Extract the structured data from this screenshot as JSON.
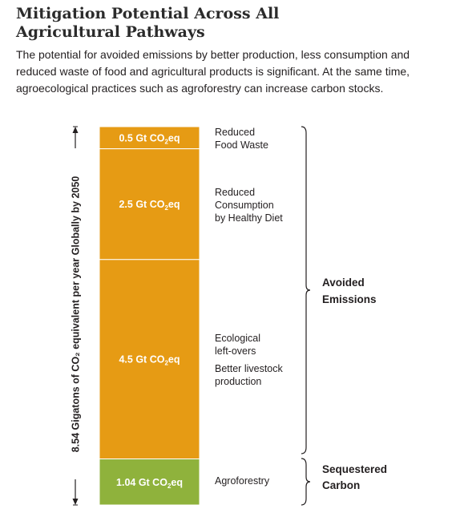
{
  "header": {
    "title_line1": "Mitigation Potential Across All",
    "title_line2": "Agricultural Pathways",
    "subtitle": "The potential for avoided emissions by better production, less consumption and reduced waste of food and agricultural products is significant. At the same time, agroecological practices such as agroforestry can increase carbon stocks."
  },
  "chart_data": {
    "type": "bar",
    "stacked": true,
    "orientation": "vertical",
    "ylabel": "8.54 Gigatons of CO₂ equivalent per year Globally by 2050",
    "total": 8.54,
    "unit": "Gt CO2eq",
    "segments": [
      {
        "value": 0.5,
        "label": "0.5 Gt CO₂eq",
        "category": [
          "Reduced",
          "Food Waste"
        ],
        "color": "#e69b14",
        "group": "Avoided Emissions"
      },
      {
        "value": 2.5,
        "label": "2.5 Gt CO₂eq",
        "category": [
          "Reduced",
          "Consumption",
          "by Healthy Diet"
        ],
        "color": "#e69b14",
        "group": "Avoided Emissions"
      },
      {
        "value": 4.5,
        "label": "4.5 Gt CO₂eq",
        "category": [
          "Ecological",
          "left-overs",
          "Better livestock",
          "production"
        ],
        "color": "#e69b14",
        "group": "Avoided Emissions"
      },
      {
        "value": 1.04,
        "label": "1.04 Gt CO₂eq",
        "category": [
          "Agroforestry"
        ],
        "color": "#8fb23c",
        "group": "Sequestered Carbon"
      }
    ],
    "groups": [
      {
        "name": [
          "Avoided",
          "Emissions"
        ]
      },
      {
        "name": [
          "Sequestered",
          "Carbon"
        ]
      }
    ]
  }
}
